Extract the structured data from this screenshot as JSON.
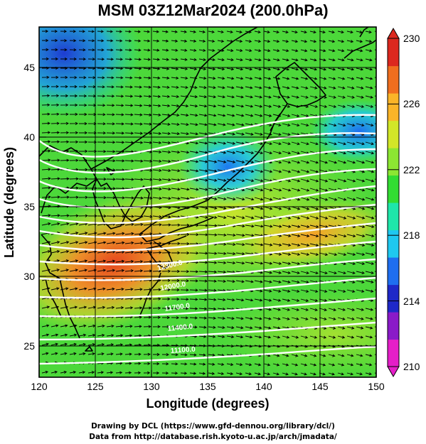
{
  "title": "MSM 03Z12Mar2024 (200.0hPa)",
  "map": {
    "x_axis": {
      "label": "Longitude (degrees)",
      "range": [
        120,
        150
      ],
      "ticks": [
        "120",
        "125",
        "130",
        "135",
        "140",
        "145",
        "150"
      ]
    },
    "y_axis": {
      "label": "Latitude  (degrees)",
      "range": [
        22.4,
        47.6
      ],
      "ticks": [
        "25",
        "30",
        "35",
        "40",
        "45"
      ]
    },
    "field": "temperature",
    "contour_labels": [
      "12300.0",
      "12000.0",
      "11700.0",
      "11400.0",
      "11100.0"
    ],
    "wind_vectors": "arrows, predominantly westerly"
  },
  "colorbar": {
    "ticks": [
      "230",
      "226",
      "222",
      "218",
      "214",
      "210"
    ],
    "min": 210,
    "max": 230,
    "colors": [
      "#e51ec8",
      "#8a1ac8",
      "#1e28c8",
      "#1e6ef0",
      "#1ec8f0",
      "#1ee6aa",
      "#32dc32",
      "#8ce632",
      "#d2e628",
      "#fab428",
      "#f06e1e",
      "#dc281e"
    ]
  },
  "credits": {
    "line1": "Drawing by DCL (https://www.gfd-dennou.org/library/dcl/)",
    "line2": "Data from http://database.rish.kyoto-u.ac.jp/arch/jmadata/"
  }
}
